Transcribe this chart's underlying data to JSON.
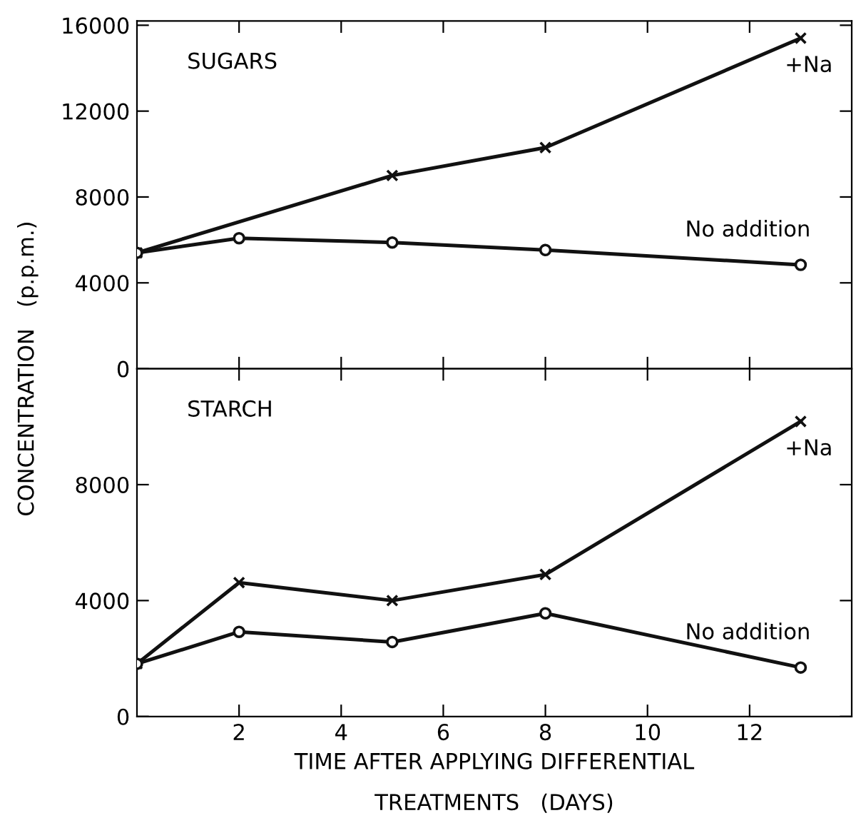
{
  "chart_data": [
    {
      "type": "line",
      "title": "SUGARS",
      "ylabel": "CONCENTRATION   (p.p.m.)",
      "x": [
        0,
        2,
        5,
        8,
        13
      ],
      "xlim": [
        0,
        14
      ],
      "xticks": [
        2,
        4,
        6,
        8,
        10,
        12
      ],
      "ylim": [
        0,
        16200
      ],
      "yticks": [
        0,
        4000,
        8000,
        12000,
        16000
      ],
      "tick_labels": "y",
      "grid": false,
      "legend": false,
      "line_style": "solid",
      "series": [
        {
          "name": "+Na",
          "color": "#111111",
          "marker": "cross",
          "values": [
            5400,
            null,
            9000,
            10300,
            15400
          ]
        },
        {
          "name": "No addition",
          "color": "#111111",
          "marker": "circle",
          "values": [
            5400,
            6080,
            5880,
            5530,
            4840
          ]
        }
      ]
    },
    {
      "type": "line",
      "title": "STARCH",
      "xlabel": "TIME AFTER APPLYING DIFFERENTIAL\nTREATMENTS   (DAYS)",
      "x": [
        0,
        2,
        5,
        8,
        13
      ],
      "xlim": [
        0,
        14
      ],
      "xticks": [
        2,
        4,
        6,
        8,
        10,
        12
      ],
      "ylim": [
        0,
        12000
      ],
      "yticks": [
        0,
        4000,
        8000
      ],
      "grid": false,
      "legend": false,
      "line_style": "solid",
      "series": [
        {
          "name": "+Na",
          "color": "#111111",
          "marker": "cross",
          "values": [
            1820,
            4620,
            4000,
            4900,
            10180
          ]
        },
        {
          "name": "No addition",
          "color": "#111111",
          "marker": "circle",
          "values": [
            1820,
            2920,
            2570,
            3560,
            1690
          ]
        }
      ]
    }
  ]
}
